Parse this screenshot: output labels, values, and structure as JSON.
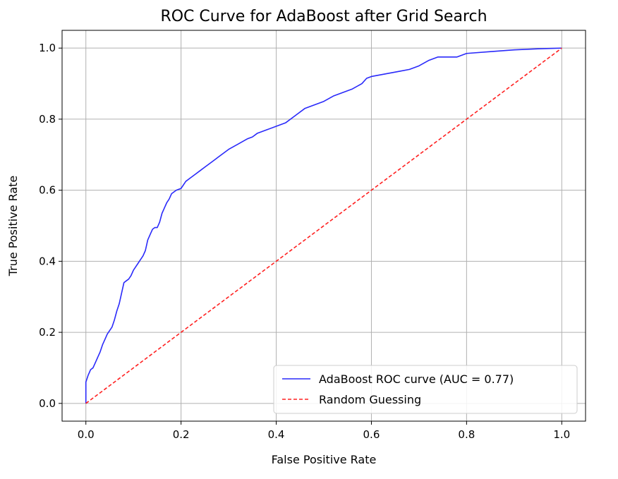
{
  "chart_data": {
    "type": "line",
    "title": "ROC Curve for AdaBoost after Grid Search",
    "xlabel": "False Positive Rate",
    "ylabel": "True Positive Rate",
    "xlim": [
      -0.05,
      1.05
    ],
    "ylim": [
      -0.05,
      1.05
    ],
    "xticks": [
      0.0,
      0.2,
      0.4,
      0.6,
      0.8,
      1.0
    ],
    "yticks": [
      0.0,
      0.2,
      0.4,
      0.6,
      0.8,
      1.0
    ],
    "xtick_labels": [
      "0.0",
      "0.2",
      "0.4",
      "0.6",
      "0.8",
      "1.0"
    ],
    "ytick_labels": [
      "0.0",
      "0.2",
      "0.4",
      "0.6",
      "0.8",
      "1.0"
    ],
    "grid": true,
    "legend_position": "bottom-right",
    "series": [
      {
        "name": "AdaBoost ROC curve (AUC = 0.77)",
        "color": "#2a2afa",
        "style": "solid",
        "x": [
          0.0,
          0.0,
          0.005,
          0.01,
          0.015,
          0.02,
          0.025,
          0.03,
          0.035,
          0.04,
          0.045,
          0.05,
          0.055,
          0.06,
          0.065,
          0.07,
          0.075,
          0.08,
          0.085,
          0.09,
          0.095,
          0.1,
          0.105,
          0.11,
          0.115,
          0.12,
          0.125,
          0.13,
          0.135,
          0.14,
          0.145,
          0.15,
          0.155,
          0.16,
          0.165,
          0.17,
          0.175,
          0.18,
          0.185,
          0.19,
          0.2,
          0.21,
          0.22,
          0.23,
          0.24,
          0.25,
          0.26,
          0.27,
          0.28,
          0.29,
          0.3,
          0.32,
          0.34,
          0.35,
          0.36,
          0.38,
          0.4,
          0.42,
          0.44,
          0.46,
          0.48,
          0.5,
          0.52,
          0.54,
          0.56,
          0.58,
          0.59,
          0.6,
          0.62,
          0.64,
          0.66,
          0.68,
          0.7,
          0.72,
          0.74,
          0.76,
          0.78,
          0.8,
          0.85,
          0.9,
          0.95,
          1.0
        ],
        "y": [
          0.0,
          0.06,
          0.08,
          0.095,
          0.1,
          0.115,
          0.13,
          0.145,
          0.165,
          0.18,
          0.195,
          0.205,
          0.215,
          0.235,
          0.26,
          0.28,
          0.31,
          0.34,
          0.345,
          0.35,
          0.36,
          0.375,
          0.385,
          0.395,
          0.405,
          0.415,
          0.43,
          0.46,
          0.475,
          0.49,
          0.495,
          0.495,
          0.51,
          0.535,
          0.55,
          0.565,
          0.575,
          0.59,
          0.595,
          0.6,
          0.605,
          0.625,
          0.635,
          0.645,
          0.655,
          0.665,
          0.675,
          0.685,
          0.695,
          0.705,
          0.715,
          0.73,
          0.745,
          0.75,
          0.76,
          0.77,
          0.78,
          0.79,
          0.81,
          0.83,
          0.84,
          0.85,
          0.865,
          0.875,
          0.885,
          0.9,
          0.915,
          0.92,
          0.925,
          0.93,
          0.935,
          0.94,
          0.95,
          0.965,
          0.975,
          0.975,
          0.975,
          0.985,
          0.99,
          0.995,
          0.998,
          1.0
        ]
      },
      {
        "name": "Random Guessing",
        "color": "#ff2020",
        "style": "dashed",
        "x": [
          0.0,
          1.0
        ],
        "y": [
          0.0,
          1.0
        ]
      }
    ]
  }
}
